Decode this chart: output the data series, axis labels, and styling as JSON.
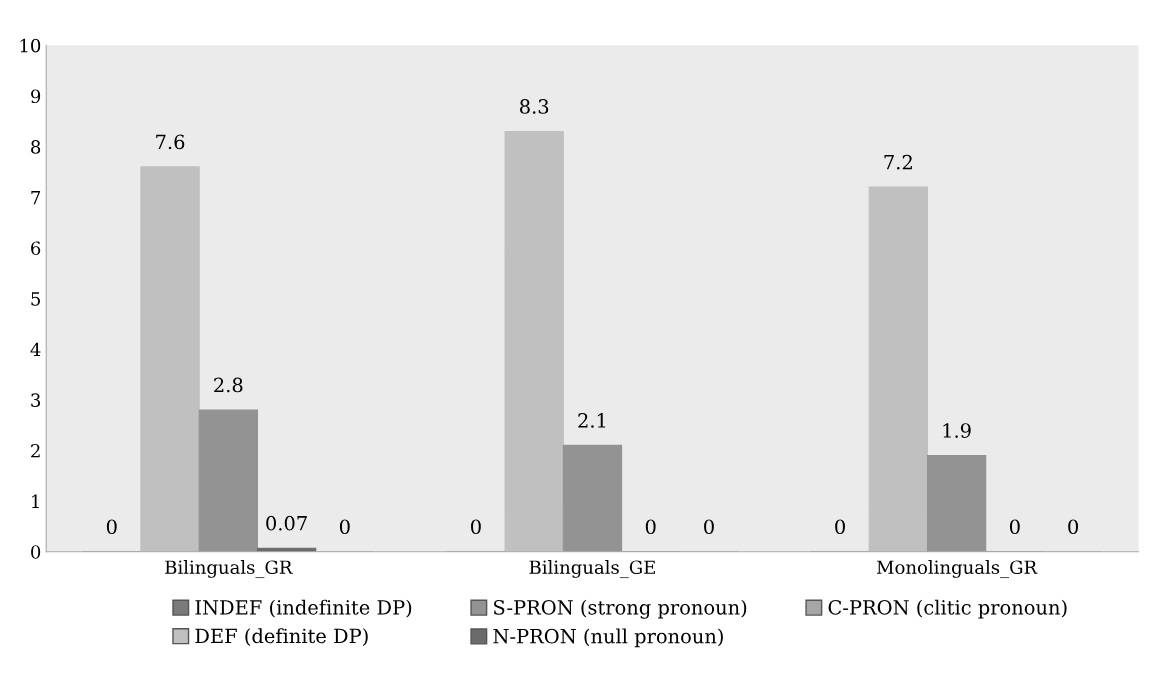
{
  "chart_data": {
    "type": "bar",
    "categories": [
      "Bilinguals_GR",
      "Bilinguals_GE",
      "Monolinguals_GR"
    ],
    "series": [
      {
        "name": "INDEF (indefinite DP)",
        "color": "#7a7a7a",
        "values": [
          0,
          0,
          0
        ]
      },
      {
        "name": "DEF (definite DP)",
        "color": "#c0c0c0",
        "values": [
          7.6,
          8.3,
          7.2
        ]
      },
      {
        "name": "S-PRON (strong pronoun)",
        "color": "#939393",
        "values": [
          2.8,
          2.1,
          1.9
        ]
      },
      {
        "name": "N-PRON (null pronoun)",
        "color": "#6b6b6b",
        "values": [
          0.07,
          0,
          0
        ]
      },
      {
        "name": "C-PRON (clitic pronoun)",
        "color": "#a6a6a6",
        "values": [
          0,
          0,
          0
        ]
      }
    ],
    "ylim": [
      0,
      10
    ],
    "yticks": [
      0,
      1,
      2,
      3,
      4,
      5,
      6,
      7,
      8,
      9,
      10
    ],
    "data_labels": true,
    "legend": "bottom",
    "grid": false
  }
}
